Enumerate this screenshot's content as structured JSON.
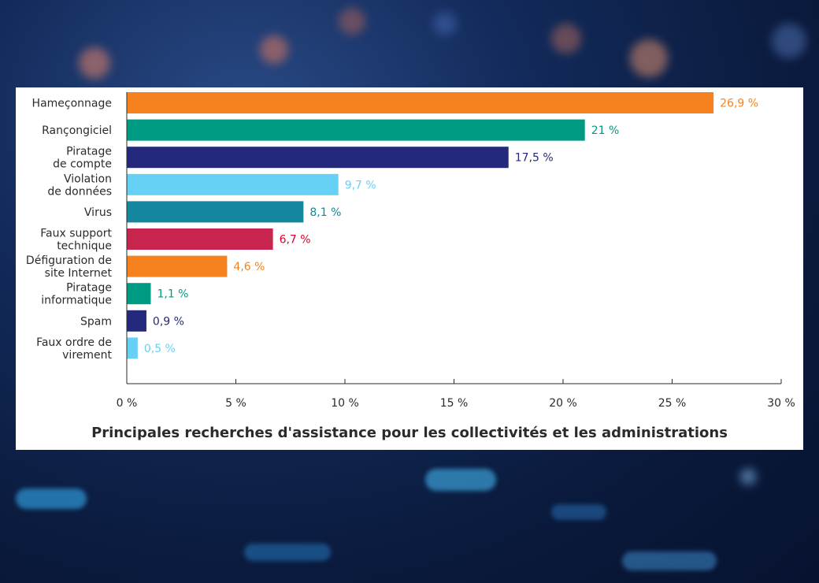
{
  "chart_data": {
    "type": "bar",
    "orientation": "horizontal",
    "title": "Principales recherches d'assistance pour les collectivités et les administrations",
    "xlabel": "",
    "ylabel": "",
    "xlim": [
      0,
      30
    ],
    "grid": false,
    "categories": [
      [
        "Hameçonnage"
      ],
      [
        "Rançongiciel"
      ],
      [
        "Piratage",
        "de compte"
      ],
      [
        "Violation",
        "de données"
      ],
      [
        "Virus"
      ],
      [
        "Faux support",
        "technique"
      ],
      [
        "Défiguration de",
        "site Internet"
      ],
      [
        "Piratage",
        "informatique"
      ],
      [
        "Spam"
      ],
      [
        "Faux ordre de",
        "virement"
      ]
    ],
    "values": [
      26.9,
      21,
      17.5,
      9.7,
      8.1,
      6.7,
      4.6,
      1.1,
      0.9,
      0.5
    ],
    "value_labels": [
      "26,9 %",
      "21 %",
      "17,5 %",
      "9,7 %",
      "8,1 %",
      "6,7 %",
      "4,6 %",
      "1,1 %",
      "0,9 %",
      "0,5 %"
    ],
    "bar_colors": [
      "#f5821f",
      "#009a82",
      "#25297b",
      "#67d0f5",
      "#14869e",
      "#c7254e",
      "#f5821f",
      "#009a82",
      "#25297b",
      "#67d0f5"
    ],
    "label_colors": [
      "#f5821f",
      "#009a82",
      "#25297b",
      "#67d0f5",
      "#14869e",
      "#e1002a",
      "#f5821f",
      "#009a82",
      "#25297b",
      "#67d0f5"
    ],
    "ticks": [
      0,
      5,
      10,
      15,
      20,
      25,
      30
    ],
    "tick_labels": [
      "0 %",
      "5 %",
      "10 %",
      "15 %",
      "20 %",
      "25 %",
      "30 %"
    ]
  }
}
